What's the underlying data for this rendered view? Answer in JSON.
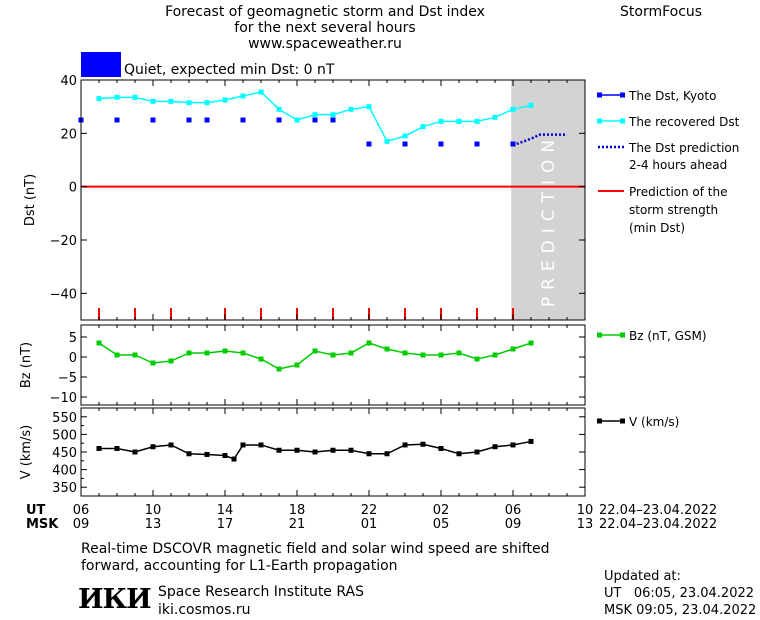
{
  "header": {
    "title_lines": [
      "Forecast of geomagnetic storm and Dst index",
      "for the next several hours",
      "www.spaceweather.ru"
    ],
    "brand": "StormFocus"
  },
  "status": {
    "text": "Quiet, expected min Dst: 0 nT",
    "color": "#0000ff"
  },
  "legend": {
    "kyoto": "The Dst, Kyoto",
    "recovered": "The recovered Dst",
    "prediction_line1": "The Dst prediction",
    "prediction_line2": "2-4 hours ahead",
    "storm_line1": "Prediction of the",
    "storm_line2": "storm strength",
    "storm_line3": "(min Dst)",
    "bz": "Bz (nT, GSM)",
    "v": "V (km/s)"
  },
  "time_axis": {
    "ut_label": "UT",
    "msk_label": "MSK",
    "ut_ticks": [
      "06",
      "10",
      "14",
      "18",
      "22",
      "02",
      "06",
      "10"
    ],
    "msk_ticks": [
      "09",
      "13",
      "17",
      "21",
      "01",
      "05",
      "09",
      "13"
    ],
    "range_ut": "22.04–23.04.2022",
    "range_msk": "22.04–23.04.2022"
  },
  "prediction_band_label": "PREDICTION",
  "chart_data": [
    {
      "type": "line",
      "ylabel": "Dst (nT)",
      "ylim": [
        -50,
        40
      ],
      "yticks": [
        40,
        20,
        0,
        -20,
        -40
      ],
      "xlim": [
        6,
        34
      ],
      "prediction_band": [
        29.9,
        34
      ],
      "min_dst_prediction": 0,
      "series": [
        {
          "name": "The Dst, Kyoto",
          "style": "square-markers",
          "color": "#0000ff",
          "x": [
            6,
            8,
            10,
            12,
            13,
            15,
            17,
            19,
            20,
            22,
            24,
            26,
            28,
            30
          ],
          "y": [
            25,
            25,
            25,
            25,
            25,
            25,
            25,
            25,
            25,
            16,
            16,
            16,
            16,
            16
          ]
        },
        {
          "name": "The recovered Dst",
          "style": "line-markers",
          "color": "#00ffff",
          "x": [
            7,
            8,
            9,
            10,
            11,
            12,
            13,
            14,
            15,
            16,
            17,
            18,
            19,
            20,
            21,
            22,
            23,
            24,
            25,
            26,
            27,
            28,
            29,
            30,
            31
          ],
          "y": [
            33,
            33.5,
            33.5,
            32,
            32,
            31.5,
            31.5,
            32.5,
            34,
            35.5,
            29,
            25,
            27,
            27,
            29,
            30,
            17,
            19,
            22.5,
            24.5,
            24.5,
            24.5,
            26,
            29,
            30.5
          ]
        },
        {
          "name": "The Dst prediction",
          "style": "dotted",
          "color": "#0000cc",
          "x": [
            30,
            31,
            31.5,
            32,
            33
          ],
          "y": [
            15.5,
            18,
            19.5,
            19.5,
            19.5
          ]
        },
        {
          "name": "Prediction of the storm strength (min Dst)",
          "style": "line",
          "color": "#ff0000",
          "x": [
            6,
            34
          ],
          "y": [
            0,
            0
          ]
        }
      ],
      "hour_marks": [
        7,
        9,
        11,
        14,
        16,
        18,
        20,
        22,
        24,
        26,
        28,
        30
      ]
    },
    {
      "type": "line",
      "ylabel": "Bz (nT)",
      "ylim": [
        -12,
        8
      ],
      "yticks": [
        5,
        0,
        -5,
        -10
      ],
      "xlim": [
        6,
        34
      ],
      "series": [
        {
          "name": "Bz (nT, GSM)",
          "color": "#00cc00",
          "x": [
            7,
            8,
            9,
            10,
            11,
            12,
            13,
            14,
            15,
            16,
            17,
            18,
            19,
            20,
            21,
            22,
            23,
            24,
            25,
            26,
            27,
            28,
            29,
            30,
            31
          ],
          "y": [
            3.5,
            0.5,
            0.5,
            -1.5,
            -1,
            1,
            1,
            1.5,
            1,
            -0.5,
            -3,
            -2,
            1.5,
            0.5,
            1,
            3.5,
            2,
            1,
            0.5,
            0.5,
            1,
            -0.5,
            0.5,
            2,
            3.5
          ]
        }
      ]
    },
    {
      "type": "line",
      "ylabel": "V (km/s)",
      "ylim": [
        325,
        575
      ],
      "yticks": [
        550,
        500,
        450,
        400,
        350
      ],
      "minor_yticks": [
        525,
        475,
        425,
        375
      ],
      "xlim": [
        6,
        34
      ],
      "series": [
        {
          "name": "V (km/s)",
          "color": "#000000",
          "x": [
            7,
            8,
            9,
            10,
            11,
            12,
            13,
            14,
            14.5,
            15,
            16,
            17,
            18,
            19,
            20,
            21,
            22,
            23,
            24,
            25,
            26,
            27,
            28,
            29,
            30,
            31
          ],
          "y": [
            460,
            460,
            450,
            465,
            470,
            445,
            443,
            440,
            430,
            470,
            470,
            455,
            455,
            450,
            455,
            455,
            445,
            445,
            470,
            472,
            460,
            445,
            450,
            465,
            470,
            480
          ]
        }
      ]
    }
  ],
  "footer": {
    "note_line1": "Real-time DSCOVR magnetic field and solar wind speed are shifted",
    "note_line2": "forward, accounting for L1-Earth propagation",
    "institute_logo": "ИКИ",
    "institute_name": "Space Research Institute RAS",
    "institute_url": "iki.cosmos.ru",
    "updated_label": "Updated at:",
    "updated_ut": "UT   06:05, 23.04.2022",
    "updated_msk": "MSK 09:05, 23.04.2022"
  }
}
